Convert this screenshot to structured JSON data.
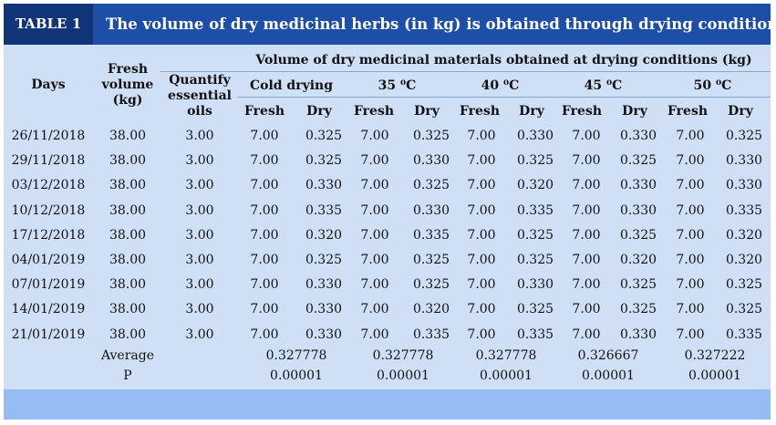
{
  "table": {
    "label": "TABLE 1",
    "title": "The volume of dry medicinal herbs (in kg) is obtained through drying conditions"
  },
  "headers": {
    "days": "Days",
    "fresh_volume": [
      "Fresh",
      "volume",
      "(kg)"
    ],
    "quantify": [
      "Quantify",
      "essential",
      "oils"
    ],
    "group": "Volume of dry medicinal materials obtained at drying conditions (kg)",
    "conditions": [
      "Cold drying",
      "35 ⁰C",
      "40 ⁰C",
      "45 ⁰C",
      "50 ⁰C"
    ],
    "fresh": "Fresh",
    "dry": "Dry"
  },
  "rows": [
    {
      "day": "26/11/2018",
      "volume": "38.00",
      "oils": "3.00",
      "vals": [
        "7.00",
        "0.325",
        "7.00",
        "0.325",
        "7.00",
        "0.330",
        "7.00",
        "0.330",
        "7.00",
        "0.325"
      ]
    },
    {
      "day": "29/11/2018",
      "volume": "38.00",
      "oils": "3.00",
      "vals": [
        "7.00",
        "0.325",
        "7.00",
        "0.330",
        "7.00",
        "0.325",
        "7.00",
        "0.325",
        "7.00",
        "0.330"
      ]
    },
    {
      "day": "03/12/2018",
      "volume": "38.00",
      "oils": "3.00",
      "vals": [
        "7.00",
        "0.330",
        "7.00",
        "0.325",
        "7.00",
        "0.320",
        "7.00",
        "0.330",
        "7.00",
        "0.330"
      ]
    },
    {
      "day": "10/12/2018",
      "volume": "38.00",
      "oils": "3.00",
      "vals": [
        "7.00",
        "0.335",
        "7.00",
        "0.330",
        "7.00",
        "0.335",
        "7.00",
        "0.330",
        "7.00",
        "0.335"
      ]
    },
    {
      "day": "17/12/2018",
      "volume": "38.00",
      "oils": "3.00",
      "vals": [
        "7.00",
        "0.320",
        "7.00",
        "0.335",
        "7.00",
        "0.325",
        "7.00",
        "0.325",
        "7.00",
        "0.320"
      ]
    },
    {
      "day": "04/01/2019",
      "volume": "38.00",
      "oils": "3.00",
      "vals": [
        "7.00",
        "0.325",
        "7.00",
        "0.325",
        "7.00",
        "0.325",
        "7.00",
        "0.320",
        "7.00",
        "0.320"
      ]
    },
    {
      "day": "07/01/2019",
      "volume": "38.00",
      "oils": "3.00",
      "vals": [
        "7.00",
        "0.330",
        "7.00",
        "0.325",
        "7.00",
        "0.330",
        "7.00",
        "0.325",
        "7.00",
        "0.325"
      ]
    },
    {
      "day": "14/01/2019",
      "volume": "38.00",
      "oils": "3.00",
      "vals": [
        "7.00",
        "0.330",
        "7.00",
        "0.320",
        "7.00",
        "0.325",
        "7.00",
        "0.325",
        "7.00",
        "0.325"
      ]
    },
    {
      "day": "21/01/2019",
      "volume": "38.00",
      "oils": "3.00",
      "vals": [
        "7.00",
        "0.330",
        "7.00",
        "0.335",
        "7.00",
        "0.335",
        "7.00",
        "0.330",
        "7.00",
        "0.335"
      ]
    }
  ],
  "average": {
    "label": "Average",
    "values": [
      "0.327778",
      "0.327778",
      "0.327778",
      "0.326667",
      "0.327222"
    ]
  },
  "p": {
    "label": "P",
    "values": [
      "0.00001",
      "0.00001",
      "0.00001",
      "0.00001",
      "0.00001"
    ]
  }
}
